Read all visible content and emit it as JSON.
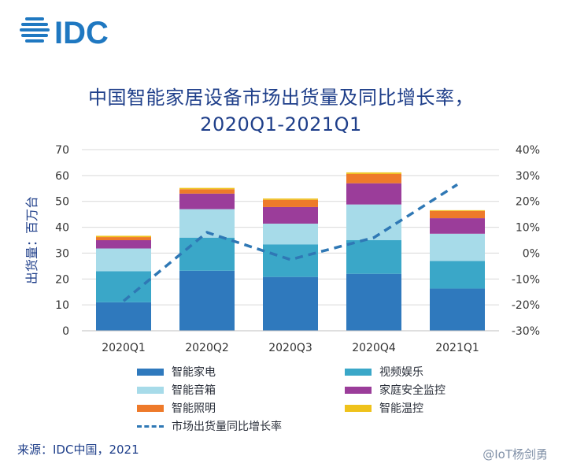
{
  "logo_text": "IDC",
  "title_line1": "中国智能家居设备市场出货量及同比增长率，",
  "title_line2": "2020Q1-2021Q1",
  "source": "来源：IDC中国，2021",
  "watermark": "@IoT杨剑勇",
  "colors": {
    "smart_appliance": "#2f79bd",
    "video_entertainment": "#3aa7c8",
    "smart_speaker": "#a7dbe9",
    "home_security": "#9b3d9a",
    "smart_lighting": "#ee7a2a",
    "smart_temp": "#efc21b",
    "growth_line": "#2f78b5",
    "title": "#1f3f8a"
  },
  "chart_data": {
    "type": "bar",
    "stacked": true,
    "categories": [
      "2020Q1",
      "2020Q2",
      "2020Q3",
      "2020Q4",
      "2021Q1"
    ],
    "series": [
      {
        "name": "智能家电",
        "values": [
          11,
          23.2,
          20.8,
          22,
          16.3
        ]
      },
      {
        "name": "视频娱乐",
        "values": [
          12,
          12.8,
          12.6,
          13,
          10.7
        ]
      },
      {
        "name": "智能音箱",
        "values": [
          8.8,
          11,
          8,
          13.8,
          10.5
        ]
      },
      {
        "name": "家庭安全监控",
        "values": [
          3.2,
          6,
          6.4,
          8.2,
          6
        ]
      },
      {
        "name": "智能照明",
        "values": [
          1.2,
          1.7,
          2.8,
          3.6,
          2.8
        ]
      },
      {
        "name": "智能温控",
        "values": [
          0.5,
          0.5,
          0.5,
          0.6,
          0.3
        ]
      }
    ],
    "line_series": {
      "name": "市场出货量同比增长率",
      "values": [
        -18.5,
        8,
        -2.5,
        6,
        26.5
      ]
    },
    "ylabel": "出货量：百万台",
    "ylim": [
      0,
      70
    ],
    "yticks": [
      0,
      10,
      20,
      30,
      40,
      50,
      60,
      70
    ],
    "y2lim": [
      -30,
      40
    ],
    "y2ticks": [
      "-30%",
      "-20%",
      "-10%",
      "0%",
      "10%",
      "20%",
      "30%",
      "40%"
    ],
    "grid": true,
    "legend_position": "bottom"
  }
}
